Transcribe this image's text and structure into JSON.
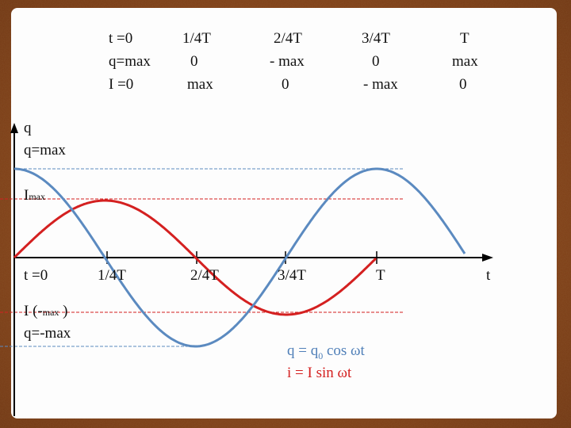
{
  "header": {
    "rows": [
      [
        "t =0",
        "1/4T",
        "2/4T",
        "3/4T",
        "T"
      ],
      [
        "q=max",
        "0",
        "- max",
        "0",
        "max"
      ],
      [
        "I =0",
        "max",
        "0",
        "- max",
        "0"
      ]
    ]
  },
  "axis": {
    "y_label": "q",
    "q_max": "q=max",
    "i_max": {
      "main": "I",
      "subscript": "max"
    },
    "x_labels": [
      "t =0",
      "1/4T",
      "2/4T",
      "3/4T",
      "T"
    ],
    "x_label": "t",
    "i_min": {
      "before": "I (-",
      "subscript": "max",
      "after": " )"
    },
    "q_min": "q=-max"
  },
  "formulas": {
    "charge": {
      "before": "q = q",
      "subscript": "0",
      "after": " cos ωt"
    },
    "current": "i = I sin ωt"
  }
}
